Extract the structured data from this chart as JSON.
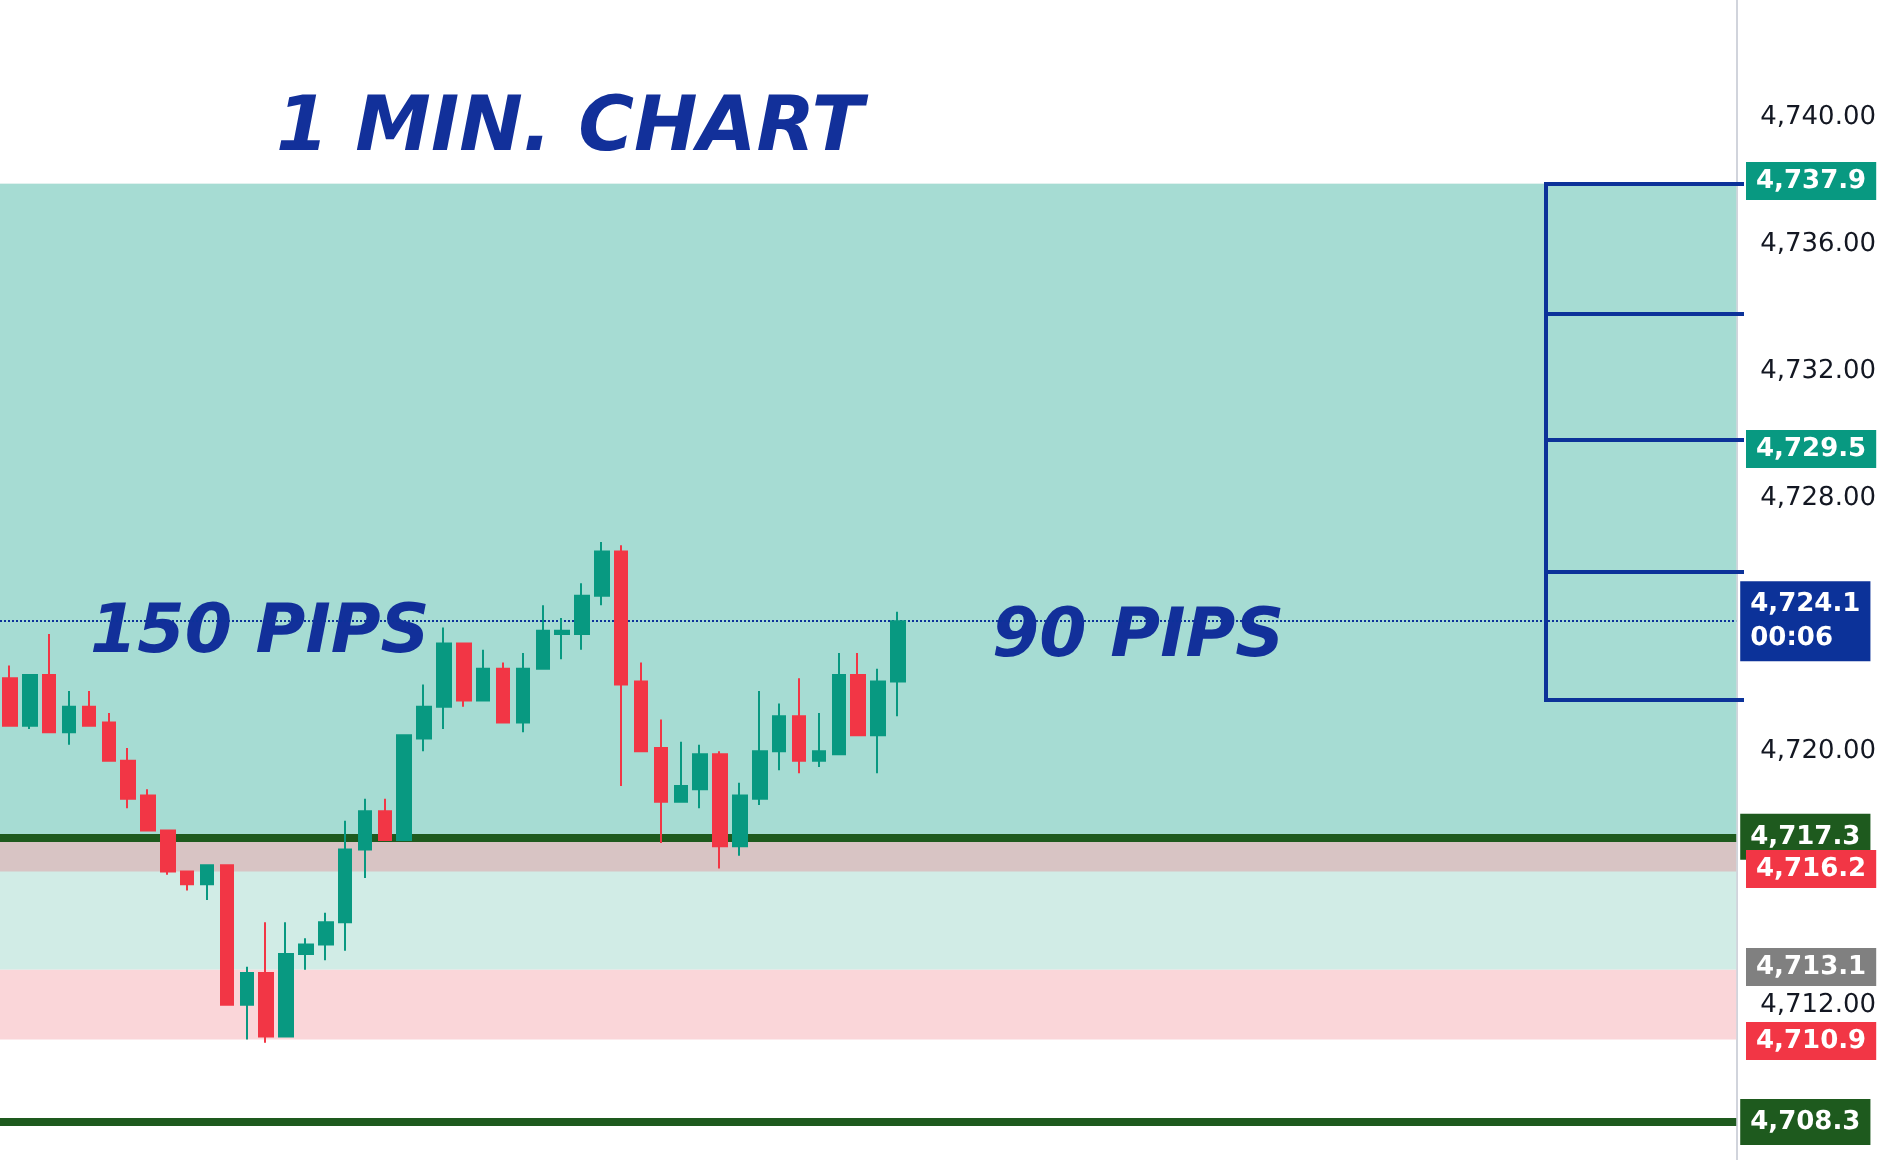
{
  "chart_data": {
    "type": "candlestick",
    "title": "1 MIN. CHART",
    "categories": [
      null,
      null,
      null,
      null,
      null,
      null,
      null,
      null,
      null,
      null,
      null,
      null,
      null,
      null,
      null,
      null,
      null,
      null,
      null,
      null,
      null,
      null,
      null,
      null,
      null,
      null,
      null,
      null,
      null,
      null,
      null,
      null,
      null,
      null,
      null,
      null,
      null,
      null,
      null,
      null,
      null,
      null,
      null,
      null,
      null,
      null,
      null,
      null,
      null,
      null,
      null,
      null,
      null,
      null,
      null,
      null,
      null,
      null,
      null,
      null,
      null,
      null,
      null,
      null,
      null,
      null,
      null,
      null,
      null,
      null,
      null,
      null,
      null,
      null,
      null,
      null,
      null,
      null,
      null,
      null,
      null,
      null,
      null,
      null,
      null,
      null,
      null,
      null
    ],
    "ohlc": [
      [
        4722.3,
        4722.7,
        4720.8,
        4720.8
      ],
      [
        4720.8,
        4722.4,
        4720.7,
        4722.4
      ],
      [
        4722.4,
        4723.7,
        4720.6,
        4720.6
      ],
      [
        4720.6,
        4721.9,
        4720.2,
        4721.4
      ],
      [
        4721.4,
        4721.9,
        4720.8,
        4720.8
      ],
      [
        4720.9,
        4721.2,
        4719.7,
        4719.7
      ],
      [
        4719.7,
        4720.1,
        4718.2,
        4718.5
      ],
      [
        4718.6,
        4718.8,
        4717.5,
        4717.5
      ],
      [
        4717.5,
        4717.5,
        4716.1,
        4716.2
      ],
      [
        4716.2,
        4716.2,
        4715.6,
        4715.8
      ],
      [
        4715.8,
        4716.4,
        4715.3,
        4716.4
      ],
      [
        4716.4,
        4716.4,
        4712.0,
        4712.0
      ],
      [
        4712.0,
        4713.2,
        4710.9,
        4713.0
      ],
      [
        4713.0,
        4714.6,
        4710.8,
        4711.0
      ],
      [
        4711.0,
        4714.6,
        4711.0,
        4713.6
      ],
      [
        4713.6,
        4714.1,
        4713.1,
        4713.9
      ],
      [
        4713.9,
        4714.9,
        4713.4,
        4714.6
      ],
      [
        4714.6,
        4717.8,
        4713.7,
        4716.9
      ],
      [
        4716.9,
        4718.5,
        4716.0,
        4718.1
      ],
      [
        4718.1,
        4718.5,
        4717.2,
        4717.2
      ],
      [
        4717.2,
        4720.5,
        4717.2,
        4720.5
      ],
      [
        4720.4,
        4722.1,
        4720.0,
        4721.4
      ],
      [
        4721.4,
        4723.9,
        4720.7,
        4723.4
      ],
      [
        4723.4,
        4723.4,
        4721.4,
        4721.6
      ],
      [
        4721.6,
        4723.2,
        4721.6,
        4722.6
      ],
      [
        4722.6,
        4722.8,
        4720.9,
        4720.9
      ],
      [
        4720.9,
        4723.1,
        4720.6,
        4722.6
      ],
      [
        4722.6,
        4724.6,
        4722.6,
        4723.8
      ],
      [
        4723.7,
        4724.2,
        4722.9,
        4723.8
      ],
      [
        4723.7,
        4725.3,
        4723.2,
        4724.9
      ],
      [
        4724.9,
        4726.6,
        4724.6,
        4726.3
      ],
      [
        4726.3,
        4726.5,
        4718.9,
        4722.1
      ],
      [
        4722.2,
        4722.8,
        4720.0,
        4720.0
      ],
      [
        4720.1,
        4721.0,
        4717.1,
        4718.4
      ],
      [
        4718.4,
        4720.3,
        4718.4,
        4718.9
      ],
      [
        4718.8,
        4720.2,
        4718.2,
        4719.9
      ],
      [
        4719.9,
        4720.0,
        4716.3,
        4717.0
      ],
      [
        4717.0,
        4719.0,
        4716.7,
        4718.6
      ],
      [
        4718.5,
        4721.9,
        4718.3,
        4720.0
      ],
      [
        4720.0,
        4721.5,
        4719.4,
        4721.1
      ],
      [
        4721.1,
        4722.3,
        4719.3,
        4719.7
      ],
      [
        4719.7,
        4721.2,
        4719.5,
        4720.0
      ],
      [
        4719.9,
        4723.1,
        4719.9,
        4722.4
      ],
      [
        4722.4,
        4723.1,
        4720.5,
        4720.5
      ],
      [
        4720.5,
        4722.6,
        4719.3,
        4722.2
      ],
      [
        4722.2,
        4724.4,
        4721.1,
        4724.1
      ],
      null,
      null,
      null,
      null,
      null,
      null,
      null,
      null,
      null,
      null,
      null,
      null,
      null,
      null,
      null,
      null,
      null,
      null,
      null,
      null,
      null,
      null,
      null,
      null,
      null,
      null,
      null,
      null,
      null,
      null,
      null,
      null,
      null,
      null,
      null,
      null,
      null,
      null,
      null,
      null,
      null,
      null
    ],
    "colors": [
      "#f23645",
      "#089981",
      "#f23645",
      "#089981",
      "#f23645",
      "#f23645",
      "#f23645",
      "#f23645",
      "#f23645",
      "#f23645",
      "#089981",
      "#f23645",
      "#089981",
      "#f23645",
      "#089981",
      "#089981",
      "#089981",
      "#089981",
      "#089981",
      "#f23645",
      "#089981",
      "#089981",
      "#089981",
      "#f23645",
      "#089981",
      "#f23645",
      "#089981",
      "#089981",
      "#089981",
      "#089981",
      "#089981",
      "#f23645",
      "#f23645",
      "#f23645",
      "#089981",
      "#089981",
      "#f23645",
      "#089981",
      "#089981",
      "#089981",
      "#f23645",
      "#089981",
      "#089981",
      "#f23645",
      "#089981",
      "#089981",
      null,
      null,
      null,
      null,
      null,
      null,
      null,
      null,
      null,
      null,
      null,
      null,
      null,
      null,
      null,
      null,
      null,
      null,
      null,
      null,
      null,
      null,
      null,
      null,
      null,
      null,
      null,
      null,
      null,
      null,
      null,
      null,
      null,
      null,
      null,
      null,
      null,
      null,
      null,
      null,
      null,
      null
    ],
    "ylim": [
      4707.1,
      4743.7
    ],
    "yticks": [
      {
        "value": 4740,
        "label": "4,740.00"
      },
      {
        "value": 4736,
        "label": "4,736.00"
      },
      {
        "value": 4732,
        "label": "4,732.00"
      },
      {
        "value": 4728,
        "label": "4,728.00"
      },
      {
        "value": 4720,
        "label": "4,720.00"
      },
      {
        "value": 4712,
        "label": "4,712.00"
      }
    ],
    "tick_labels": "y",
    "grid": false,
    "bands": [
      {
        "axis": "y",
        "from": 4713.1,
        "to": 4737.9,
        "color": "#d1ece6"
      },
      {
        "axis": "y",
        "from": 4710.9,
        "to": 4713.1,
        "color": "#fad6d9"
      },
      {
        "axis": "y",
        "from": 4717.3,
        "to": 4737.9,
        "color": "#a6dcd3"
      },
      {
        "axis": "y",
        "from": 4716.2,
        "to": 4717.3,
        "color": "#d8c4c4"
      }
    ],
    "ref_lines": [
      {
        "axis": "y",
        "value": 4724.1,
        "label": "4,724.1\n00:06",
        "color": "#0c3299",
        "line_style": "dotted"
      },
      {
        "axis": "y",
        "value": 4717.3,
        "label": "4,717.3",
        "color": "#1e5a1e",
        "line_style": "solid"
      },
      {
        "axis": "y",
        "value": 4708.3,
        "label": "4,708.3",
        "color": "#1e5a1e",
        "line_style": "solid"
      }
    ],
    "annotations": [
      "150 PIPS",
      "90 PIPS",
      "4,737.9",
      "4,729.5",
      "4,716.2",
      "4,713.1",
      "4,710.9"
    ]
  }
}
